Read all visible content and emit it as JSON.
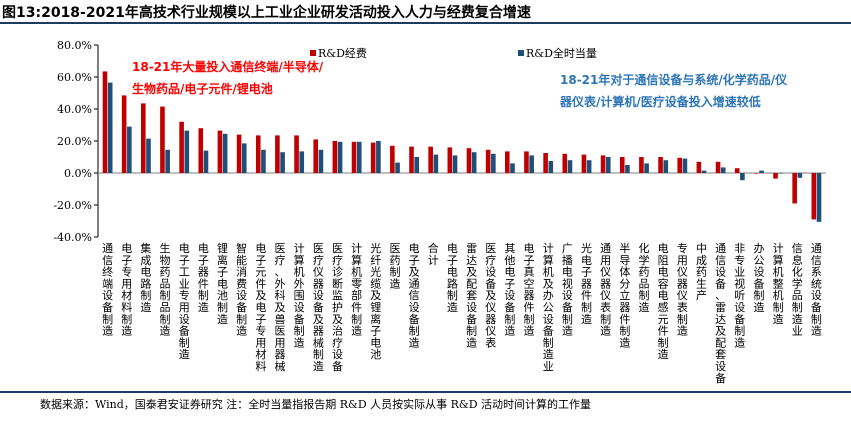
{
  "title": "图13:2018-2021年高技术行业规模以上工业企业研发活动投入人力与经费复合增速",
  "source": "数据来源：Wind，国泰君安证券研究  注：全时当量指报告期 R&D 人员按实际从事 R&D 活动时间计算的工作量",
  "colors": {
    "rd_expense": "#c00000",
    "rd_fte": "#1f4e79",
    "annotation_red": "#ff0000",
    "annotation_blue": "#2e75b6"
  },
  "annotations": {
    "left": [
      "18-21年大量投入通信终端/半导体/",
      "生物药品/电子元件/锂电池"
    ],
    "right": [
      "18-21年对于通信设备与系统/化学药品/仪",
      "器仪表/计算机/医疗设备投入增速较低"
    ]
  },
  "chart_data": {
    "type": "bar",
    "ylim": [
      -40,
      80
    ],
    "yticks": [
      "-40.0%",
      "-20.0%",
      "0.0%",
      "20.0%",
      "40.0%",
      "60.0%",
      "80.0%"
    ],
    "ytick_values": [
      -40,
      -20,
      0,
      20,
      40,
      60,
      80
    ],
    "legend_position": "top",
    "categories": [
      "通信终端设备制造",
      "电子专用材料制造",
      "集成电路制造",
      "生物药品制品制造",
      "电子工业专用设备制造",
      "电子器件制造",
      "锂离子电池制造",
      "智能消费设备制造",
      "电子元件及电子专用材料",
      "医疗、外科及兽医用器械",
      "计算机外围设备制造",
      "医疗仪器设备及器械制造",
      "医疗诊断监护及治疗设备",
      "计算机零部件制造",
      "光纤光缆及锂离子电池",
      "医药制造",
      "电子及通信设备制造",
      "合计",
      "电子电路制造",
      "雷达及配套设备制造",
      "医疗设备及仪器仪表",
      "其他电子设备制造",
      "电子真空器件制造",
      "计算机及办公设备制造业",
      "广播电视设备制造",
      "光电子器件制造",
      "通用仪器仪表制造",
      "半导体分立器件制造",
      "化学药品制造",
      "电阻电容电感元件制造",
      "专用仪器仪表制造",
      "中成药生产",
      "通信设备、雷达及配套设备",
      "非专业视听设备制造",
      "办公设备制造",
      "计算机整机制造",
      "信息化学品制造业",
      "通信系统设备制造"
    ],
    "series": [
      {
        "name": "R&D经费",
        "values": [
          63.5,
          48.5,
          43.5,
          41.5,
          32,
          28,
          26.5,
          24,
          23.5,
          23.5,
          23.5,
          21,
          20,
          19.5,
          19,
          17,
          16.5,
          16.5,
          16,
          15.5,
          14.5,
          13.5,
          13.5,
          12.5,
          12,
          11.5,
          11,
          10,
          10,
          10,
          9.5,
          7,
          7,
          3,
          0,
          -3.5,
          -19,
          -29
        ]
      },
      {
        "name": "R&D全时当量",
        "values": [
          56.5,
          29,
          21.5,
          14.5,
          26.5,
          14,
          24.5,
          18.5,
          14.5,
          13,
          13.5,
          14.5,
          19.5,
          19.5,
          20,
          6.5,
          10,
          11.5,
          11,
          13,
          12,
          6,
          11,
          7.5,
          8,
          8,
          10,
          5,
          6,
          8,
          9,
          1.5,
          3.5,
          -4.5,
          1.5,
          0,
          -3,
          -30.5
        ]
      }
    ]
  }
}
